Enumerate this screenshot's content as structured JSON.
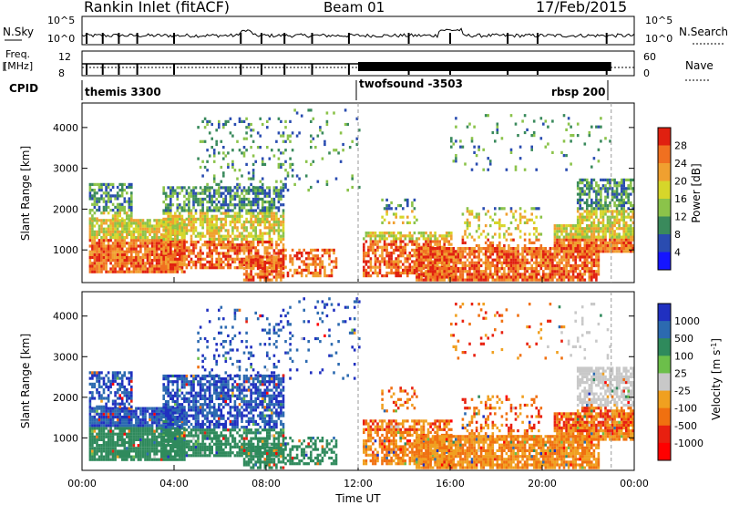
{
  "header": {
    "title": "Rankin Inlet (fitACF)",
    "beam": "Beam 01",
    "date": "17/Feb/2015"
  },
  "status_panels": {
    "nsky_label": "N.Sky",
    "nsearch_label": "N.Search",
    "nsky_ticks": [
      "10^5",
      "10^0"
    ],
    "nsearch_ticks": [
      "10^5",
      "10^0"
    ],
    "freq_label_line1": "Freq.",
    "freq_label_line2": "[MHz]",
    "freq_ticks": [
      "12",
      "8"
    ],
    "nave_label": "Nave",
    "nave_ticks": [
      "60",
      "0"
    ],
    "cpid_label": "CPID",
    "cpid_entries": [
      {
        "text": "themis 3300"
      },
      {
        "text": "twofsound -3503"
      },
      {
        "text": "rbsp 200"
      }
    ]
  },
  "chart_data": [
    {
      "type": "heatmap",
      "name": "power",
      "xlabel": "",
      "ylabel": "Slant Range [km]",
      "xlim": [
        0,
        24
      ],
      "ylim": [
        200,
        4600
      ],
      "yticks": [
        1000,
        2000,
        3000,
        4000
      ],
      "xticks_hours": [
        0,
        4,
        8,
        12,
        16,
        20,
        24
      ],
      "colorbar": {
        "label": "Power [dB]",
        "range": [
          0,
          32
        ],
        "tick_labels": [
          "4",
          "8",
          "12",
          "16",
          "20",
          "24",
          "28"
        ],
        "colors": [
          "#1515ff",
          "#2a4cb0",
          "#3a8a5c",
          "#8bc34a",
          "#d6d62a",
          "#f0a030",
          "#f07020",
          "#e02010"
        ]
      }
    },
    {
      "type": "heatmap",
      "name": "velocity",
      "xlabel": "Time UT",
      "ylabel": "Slant Range [km]",
      "xlim": [
        0,
        24
      ],
      "ylim": [
        200,
        4600
      ],
      "yticks": [
        1000,
        2000,
        3000,
        4000
      ],
      "xtick_labels": [
        "00:00",
        "04:00",
        "08:00",
        "12:00",
        "16:00",
        "20:00",
        "00:00"
      ],
      "colorbar": {
        "label": "Velocity [m s^-1]",
        "tick_labels": [
          "1000",
          "500",
          "100",
          "25",
          "-25",
          "-100",
          "-500",
          "-1000"
        ],
        "colors": [
          "#2030c0",
          "#2c6ab0",
          "#2f8a5c",
          "#6cbf4a",
          "#c8c8c8",
          "#f0a020",
          "#f07010",
          "#e82010",
          "#ff0000"
        ]
      }
    }
  ]
}
